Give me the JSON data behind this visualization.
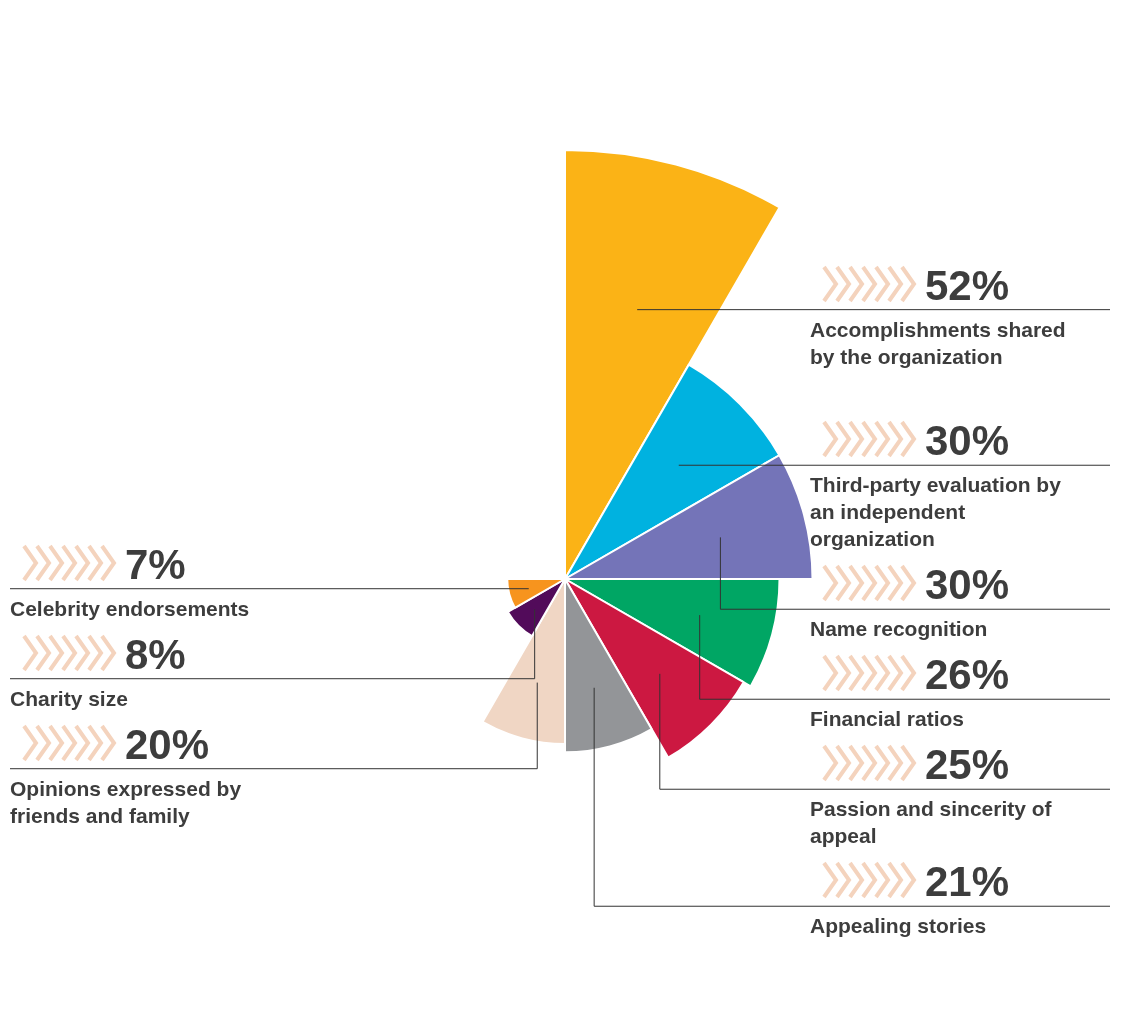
{
  "chart_data": {
    "type": "other",
    "categories": [
      "Accomplishments shared by the organization",
      "Third-party evaluation by an independent organization",
      "Name recognition",
      "Financial ratios",
      "Passion and sincerity of appeal",
      "Appealing stories",
      "Opinions expressed by friends and family",
      "Charity size",
      "Celebrity endorsements"
    ],
    "values": [
      52,
      30,
      30,
      26,
      25,
      21,
      20,
      8,
      7
    ],
    "value_labels": [
      "52%",
      "30%",
      "30%",
      "26%",
      "25%",
      "21%",
      "20%",
      "8%",
      "7%"
    ],
    "colors": [
      "#fbb316",
      "#00b2e0",
      "#7474b8",
      "#00a664",
      "#cc1841",
      "#939598",
      "#f0d6c4",
      "#520b5a",
      "#f7941e"
    ]
  }
}
